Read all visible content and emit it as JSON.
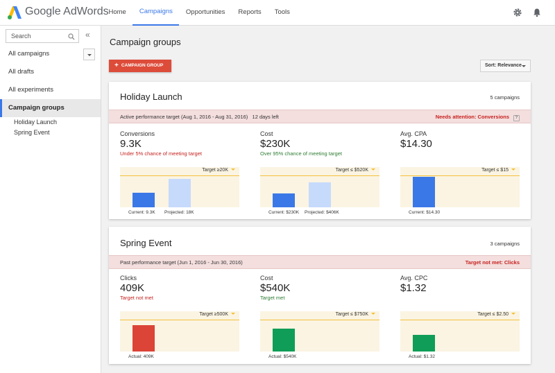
{
  "app": {
    "brand": "Google AdWords",
    "nav": [
      "Home",
      "Campaigns",
      "Opportunities",
      "Reports",
      "Tools"
    ],
    "active_nav": "Campaigns"
  },
  "sidebar": {
    "search_placeholder": "Search",
    "collapse": "«",
    "items": [
      "All campaigns",
      "All drafts",
      "All experiments",
      "Campaign groups"
    ],
    "sub_items": [
      "Holiday Launch",
      "Spring Event"
    ]
  },
  "main": {
    "title": "Campaign groups",
    "add_button": "CAMPAIGN GROUP",
    "add_button_plus": "+",
    "sort_label": "Sort: Relevance"
  },
  "colors": {
    "accent": "#3b78e7",
    "add_button": "#dd4b39",
    "bar_blue_current": "#3b78e7",
    "bar_blue_projected": "#c6dafc",
    "bar_red": "#db4437",
    "bar_green": "#0f9d58",
    "target_band": "#fbf4e2",
    "target_line": "#f2c13b",
    "attention_band": "#f4dede"
  },
  "groups": [
    {
      "name": "Holiday Launch",
      "campaign_count": "5 campaigns",
      "banner_left": "Active performance target (Aug 1, 2016 - Aug 31, 2016)   12 days left",
      "banner_right": "Needs attention: Conversions",
      "banner_help": "?",
      "metrics": [
        {
          "label": "Conversions",
          "value": "9.3K",
          "note": "Under 5% chance of meeting target",
          "note_status": "red",
          "target": "Target ≥20K",
          "bars": [
            {
              "value": 9.3,
              "color": "#3b78e7",
              "caption": "Current: 9.3K"
            },
            {
              "value": 18,
              "color": "#c6dafc",
              "caption": "Projected: 18K"
            }
          ],
          "scale_max": 20
        },
        {
          "label": "Cost",
          "value": "$230K",
          "note": "Over 95% chance of meeting target",
          "note_status": "green",
          "target": "Target ≤ $520K",
          "bars": [
            {
              "value": 230,
              "color": "#3b78e7",
              "caption": "Current: $230K"
            },
            {
              "value": 406,
              "color": "#c6dafc",
              "caption": "Projected: $406K"
            }
          ],
          "scale_max": 520
        },
        {
          "label": "Avg. CPA",
          "value": "$14.30",
          "note": "",
          "note_status": "",
          "target": "Target ≤ $15",
          "bars": [
            {
              "value": 14.3,
              "color": "#3b78e7",
              "caption": "Current: $14.30"
            }
          ],
          "scale_max": 15
        }
      ]
    },
    {
      "name": "Spring Event",
      "campaign_count": "3 campaigns",
      "banner_left": "Past performance target (Jun 1, 2016 - Jun 30, 2016)",
      "banner_right": "Target not met: Clicks",
      "metrics": [
        {
          "label": "Clicks",
          "value": "409K",
          "note": "Target not met",
          "note_status": "red",
          "target": "Target ≥500K",
          "bars": [
            {
              "value": 409,
              "color": "#db4437",
              "caption": "Actual: 409K"
            }
          ],
          "scale_max": 500
        },
        {
          "label": "Cost",
          "value": "$540K",
          "note": "Target met",
          "note_status": "green",
          "target": "Target ≤ $750K",
          "bars": [
            {
              "value": 540,
              "color": "#0f9d58",
              "caption": "Actual: $540K"
            }
          ],
          "scale_max": 750
        },
        {
          "label": "Avg. CPC",
          "value": "$1.32",
          "note": "",
          "note_status": "",
          "target": "Target ≤ $2.50",
          "bars": [
            {
              "value": 1.32,
              "color": "#0f9d58",
              "caption": "Actual: $1.32"
            }
          ],
          "scale_max": 2.5
        }
      ]
    }
  ]
}
